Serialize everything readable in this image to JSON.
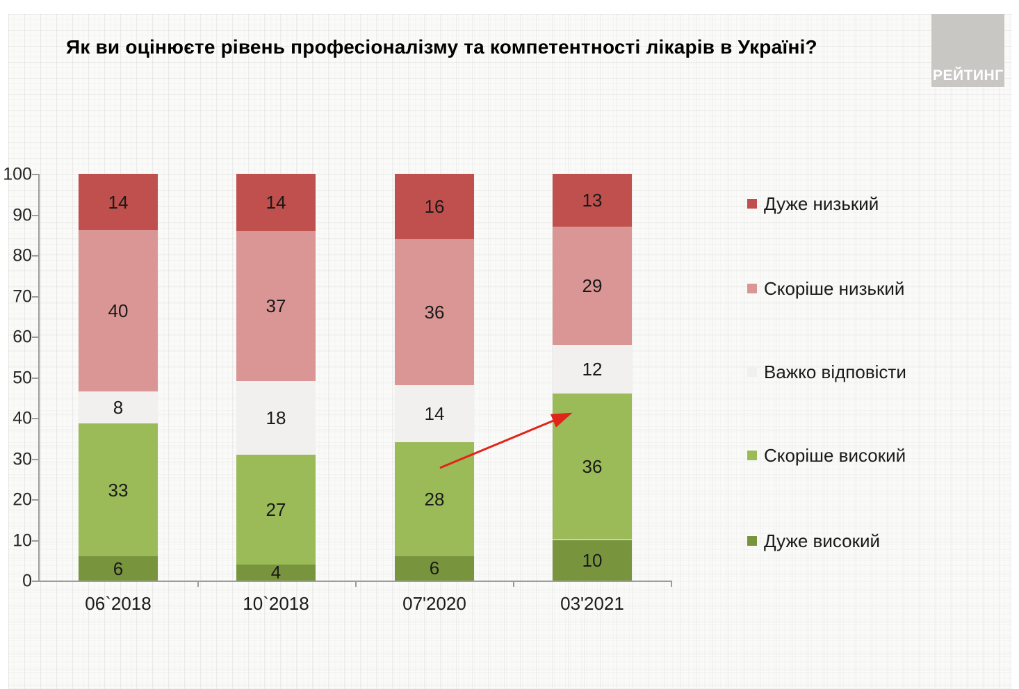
{
  "title": "Як ви оцінюєте рівень професіоналізму та компетентності лікарів в Україні?",
  "logo": {
    "text": "РЕЙТИНГ"
  },
  "chart_data": {
    "type": "bar",
    "stacked": true,
    "title": "Як ви оцінюєте рівень професіоналізму та компетентності лікарів в Україні?",
    "categories": [
      "06`2018",
      "10`2018",
      "07'2020",
      "03'2021"
    ],
    "series": [
      {
        "name": "Дуже високий",
        "color": "#78953e",
        "values": [
          6,
          4,
          6,
          10
        ]
      },
      {
        "name": "Скоріше високий",
        "color": "#9bbb59",
        "values": [
          33,
          27,
          28,
          36
        ]
      },
      {
        "name": "Важко відповісти",
        "color": "#f1f0ee",
        "values": [
          8,
          18,
          14,
          12
        ]
      },
      {
        "name": "Скоріше низький",
        "color": "#da9694",
        "values": [
          40,
          37,
          36,
          29
        ]
      },
      {
        "name": "Дуже низький",
        "color": "#c0504d",
        "values": [
          14,
          14,
          16,
          13
        ]
      }
    ],
    "legend": {
      "position": "right",
      "order_top_to_bottom": [
        "Дуже низький",
        "Скоріше низький",
        "Важко відповісти",
        "Скоріше високий",
        "Дуже високий"
      ]
    },
    "xlabel": "",
    "ylabel": "",
    "ylim": [
      0,
      100
    ],
    "yticks": [
      0,
      10,
      20,
      30,
      40,
      50,
      60,
      70,
      80,
      90,
      100
    ],
    "grid": false,
    "value_labels": true,
    "annotation": {
      "type": "arrow",
      "color": "#e0251a",
      "points_to": "segment 'Скоріше високий' (36) of category 03'2021"
    }
  }
}
